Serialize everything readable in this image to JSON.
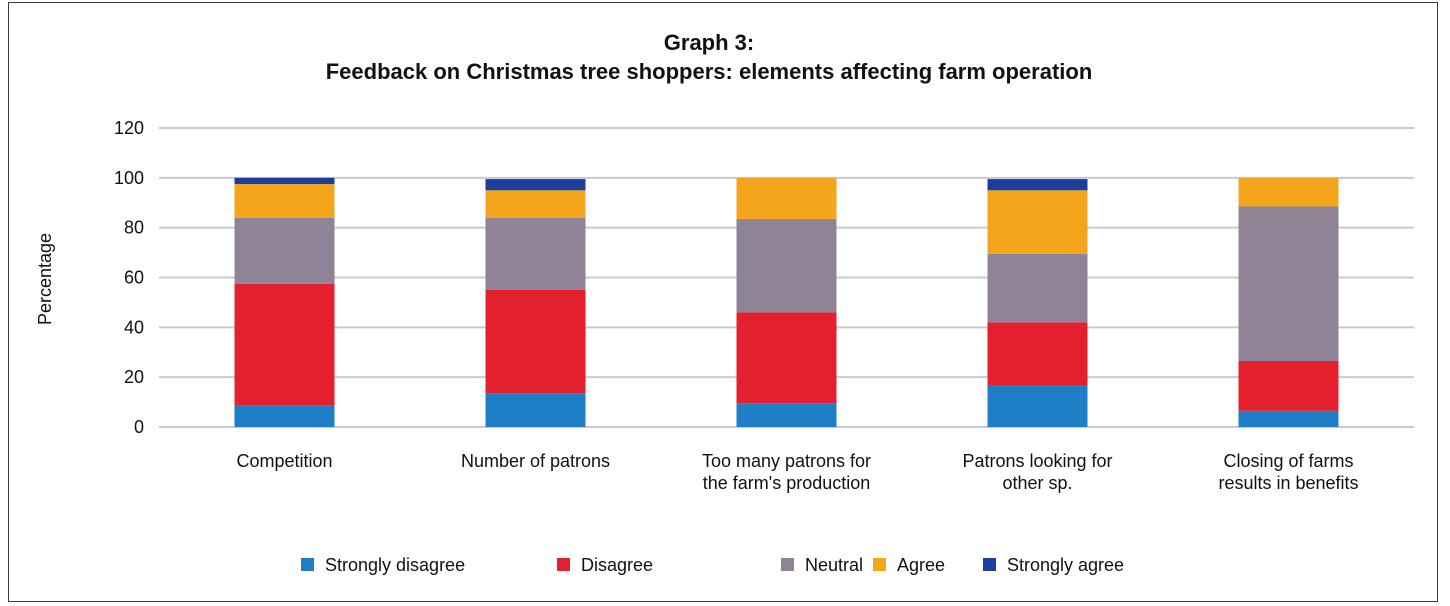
{
  "chart_data": {
    "type": "bar",
    "stacked": true,
    "title_line1": "Graph 3:",
    "title_line2": "Feedback on Christmas tree shoppers: elements affecting farm operation",
    "xlabel": "",
    "ylabel": "Percentage",
    "ylim": [
      0,
      120
    ],
    "yticks": [
      0,
      20,
      40,
      60,
      80,
      100,
      120
    ],
    "grid": true,
    "legend_position": "bottom",
    "categories": [
      [
        "Competition"
      ],
      [
        "Number of patrons"
      ],
      [
        "Too many patrons for",
        "the farm's production"
      ],
      [
        "Patrons looking for",
        "other sp."
      ],
      [
        "Closing of farms",
        "results in benefits"
      ]
    ],
    "series": [
      {
        "name": "Strongly disagree",
        "color": "#1f7fc6",
        "values": [
          8.5,
          13.5,
          9.5,
          16.5,
          6.5
        ]
      },
      {
        "name": "Disagree",
        "color": "#e4202e",
        "values": [
          49,
          41.5,
          36.5,
          25.5,
          20
        ]
      },
      {
        "name": "Neutral",
        "color": "#8f8496",
        "values": [
          26.5,
          29,
          37.5,
          27.5,
          62
        ]
      },
      {
        "name": "Agree",
        "color": "#f5a51c",
        "values": [
          13.5,
          11,
          16.5,
          25.5,
          11.5
        ]
      },
      {
        "name": "Strongly agree",
        "color": "#1c3f9e",
        "values": [
          2.5,
          4.5,
          0,
          4.5,
          0
        ]
      }
    ]
  }
}
